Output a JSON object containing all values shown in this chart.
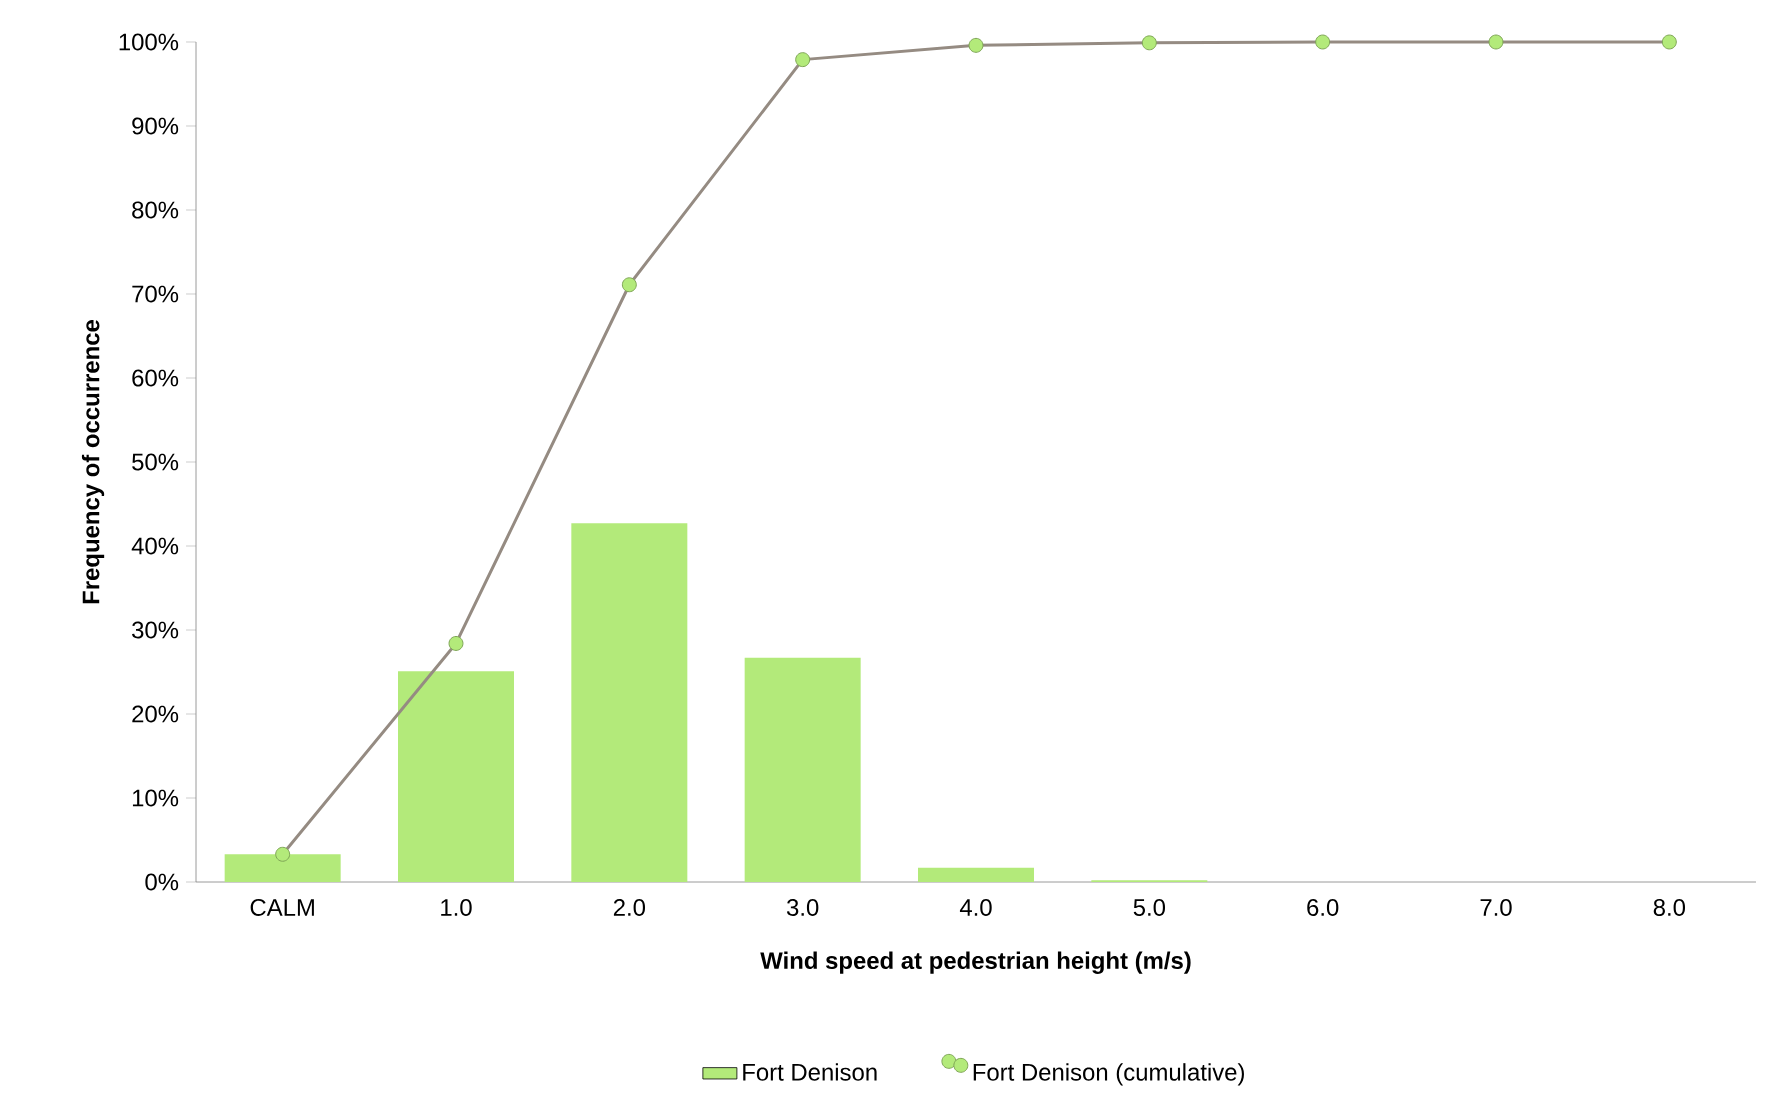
{
  "chart_data": {
    "type": "bar",
    "xlabel": "Wind speed at pedestrian height (m/s)",
    "ylabel": "Frequency of occurrence",
    "categories": [
      "CALM",
      "1.0",
      "2.0",
      "3.0",
      "4.0",
      "5.0",
      "6.0",
      "7.0",
      "8.0"
    ],
    "series": [
      {
        "name": "Fort Denison",
        "color": "#b3ea7a",
        "values": [
          3.3,
          25.1,
          42.7,
          26.7,
          1.7,
          0.2,
          0,
          0,
          0
        ]
      },
      {
        "name": "Fort Denison (cumulative)",
        "type": "line",
        "color": "#958b82",
        "marker": "circle",
        "values": [
          3.3,
          28.4,
          71.1,
          97.9,
          99.6,
          99.9,
          100,
          100,
          100
        ]
      }
    ],
    "ylim": [
      0,
      100
    ],
    "yticks": [
      {
        "value": 0,
        "label": "0%"
      },
      {
        "value": 10,
        "label": "10%"
      },
      {
        "value": 20,
        "label": "20%"
      },
      {
        "value": 30,
        "label": "30%"
      },
      {
        "value": 40,
        "label": "40%"
      },
      {
        "value": 50,
        "label": "50%"
      },
      {
        "value": 60,
        "label": "60%"
      },
      {
        "value": 70,
        "label": "70%"
      },
      {
        "value": 80,
        "label": "80%"
      },
      {
        "value": 90,
        "label": "90%"
      },
      {
        "value": 100,
        "label": "100%"
      }
    ],
    "legend": "bottom"
  }
}
